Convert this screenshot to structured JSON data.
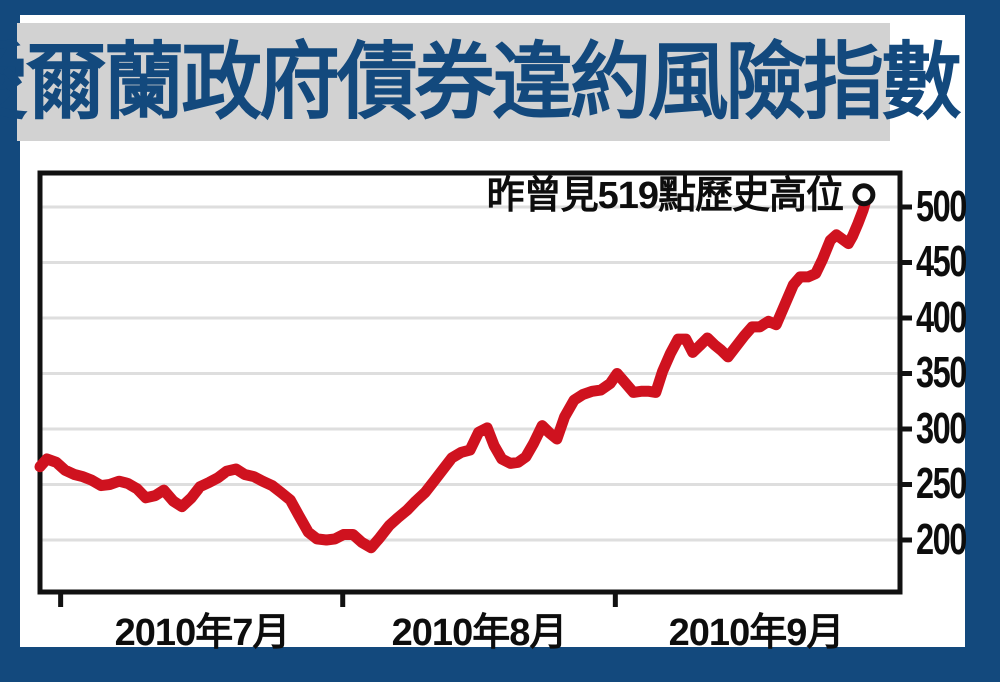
{
  "title_banner": {
    "title": "愛爾蘭政府債券違約風險指數"
  },
  "colors": {
    "frame_blue": "#13497d",
    "banner_gray": "#d2d2d2",
    "line_red": "#cf121f",
    "grid_gray": "#dedede",
    "axis_black": "#111111"
  },
  "chart_data": {
    "type": "line",
    "title": "愛爾蘭政府債券違約風險指數",
    "annotation": "昨曾見519點歷史高位",
    "record_high_value": 519,
    "grid": "horizontal",
    "legend": "none",
    "x_labels": [
      "2010年7月",
      "2010年8月",
      "2010年9月"
    ],
    "x_ticks": [
      0.024,
      0.352,
      0.669
    ],
    "y_ticks": [
      500,
      450,
      400,
      350,
      300,
      250,
      200
    ],
    "y_axis_side": "right",
    "ylim": [
      155,
      530
    ],
    "line_color": "#cf121f",
    "end_marker": {
      "frac": 0.958,
      "value": 511,
      "style": "open-circle"
    },
    "series": [
      {
        "name": "愛爾蘭政府債券違約風險指數",
        "points": [
          [
            0.0,
            266
          ],
          [
            0.008,
            273
          ],
          [
            0.019,
            270
          ],
          [
            0.029,
            263
          ],
          [
            0.04,
            259
          ],
          [
            0.05,
            257
          ],
          [
            0.06,
            254
          ],
          [
            0.071,
            249
          ],
          [
            0.081,
            250
          ],
          [
            0.092,
            253
          ],
          [
            0.102,
            251
          ],
          [
            0.113,
            246
          ],
          [
            0.123,
            238
          ],
          [
            0.134,
            240
          ],
          [
            0.144,
            245
          ],
          [
            0.155,
            235
          ],
          [
            0.165,
            230
          ],
          [
            0.176,
            238
          ],
          [
            0.186,
            248
          ],
          [
            0.197,
            252
          ],
          [
            0.207,
            256
          ],
          [
            0.217,
            262
          ],
          [
            0.228,
            264
          ],
          [
            0.238,
            259
          ],
          [
            0.249,
            257
          ],
          [
            0.259,
            253
          ],
          [
            0.27,
            249
          ],
          [
            0.28,
            243
          ],
          [
            0.291,
            236
          ],
          [
            0.301,
            222
          ],
          [
            0.312,
            207
          ],
          [
            0.322,
            201
          ],
          [
            0.333,
            200
          ],
          [
            0.343,
            201
          ],
          [
            0.353,
            205
          ],
          [
            0.364,
            205
          ],
          [
            0.374,
            198
          ],
          [
            0.385,
            193
          ],
          [
            0.395,
            202
          ],
          [
            0.406,
            213
          ],
          [
            0.416,
            220
          ],
          [
            0.427,
            227
          ],
          [
            0.437,
            235
          ],
          [
            0.448,
            243
          ],
          [
            0.458,
            253
          ],
          [
            0.469,
            264
          ],
          [
            0.479,
            274
          ],
          [
            0.49,
            279
          ],
          [
            0.5,
            281
          ],
          [
            0.51,
            297
          ],
          [
            0.52,
            301
          ],
          [
            0.528,
            285
          ],
          [
            0.537,
            273
          ],
          [
            0.547,
            269
          ],
          [
            0.556,
            270
          ],
          [
            0.565,
            275
          ],
          [
            0.574,
            287
          ],
          [
            0.584,
            303
          ],
          [
            0.593,
            296
          ],
          [
            0.601,
            291
          ],
          [
            0.61,
            311
          ],
          [
            0.621,
            326
          ],
          [
            0.631,
            331
          ],
          [
            0.642,
            334
          ],
          [
            0.652,
            335
          ],
          [
            0.663,
            341
          ],
          [
            0.671,
            350
          ],
          [
            0.68,
            342
          ],
          [
            0.69,
            333
          ],
          [
            0.699,
            334
          ],
          [
            0.708,
            334
          ],
          [
            0.716,
            333
          ],
          [
            0.724,
            352
          ],
          [
            0.733,
            368
          ],
          [
            0.742,
            381
          ],
          [
            0.751,
            381
          ],
          [
            0.759,
            369
          ],
          [
            0.767,
            375
          ],
          [
            0.776,
            382
          ],
          [
            0.784,
            376
          ],
          [
            0.792,
            371
          ],
          [
            0.8,
            365
          ],
          [
            0.809,
            374
          ],
          [
            0.819,
            384
          ],
          [
            0.828,
            392
          ],
          [
            0.837,
            392
          ],
          [
            0.847,
            397
          ],
          [
            0.856,
            394
          ],
          [
            0.866,
            412
          ],
          [
            0.876,
            430
          ],
          [
            0.884,
            437
          ],
          [
            0.893,
            437
          ],
          [
            0.902,
            440
          ],
          [
            0.91,
            453
          ],
          [
            0.919,
            470
          ],
          [
            0.926,
            475
          ],
          [
            0.933,
            471
          ],
          [
            0.94,
            467
          ],
          [
            0.945,
            474
          ],
          [
            0.951,
            485
          ],
          [
            0.957,
            497
          ],
          [
            0.96,
            505
          ]
        ]
      }
    ]
  }
}
